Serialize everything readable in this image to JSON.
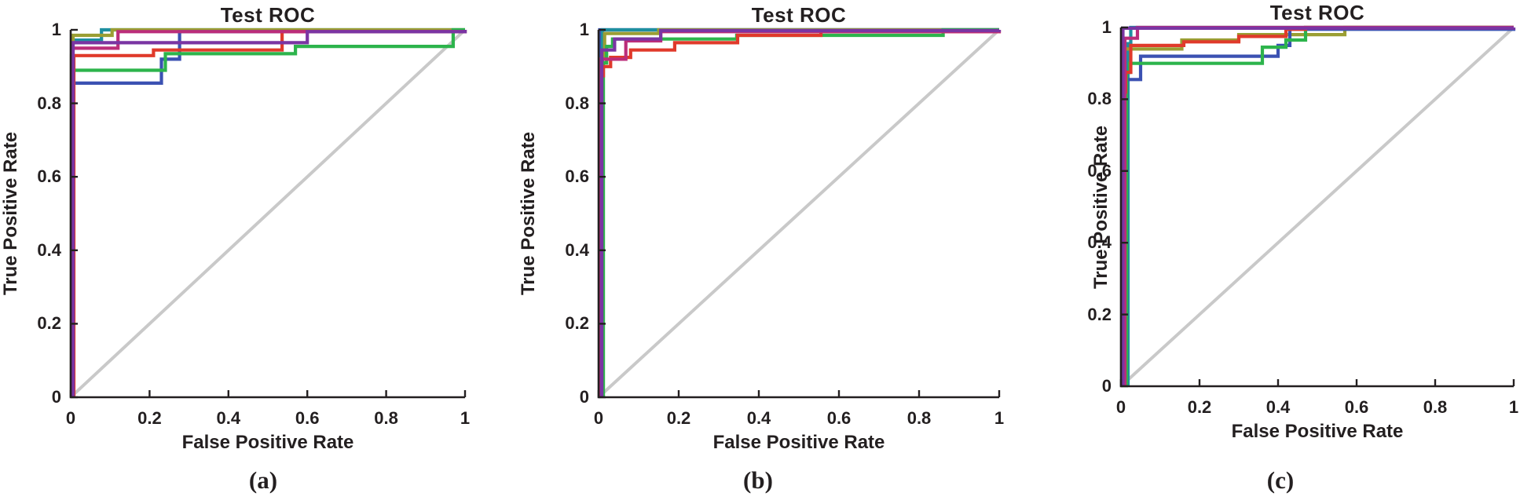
{
  "figure": {
    "background": "#ffffff",
    "colors": {
      "axis": "#231f20",
      "text": "#231f20",
      "diagonal": "#c9c9c9"
    },
    "captions": [
      "(a)",
      "(b)",
      "(c)"
    ]
  },
  "chart_data": [
    {
      "type": "line",
      "title": "Test ROC",
      "xlabel": "False Positive Rate",
      "ylabel": "True Positive Rate",
      "xlim": [
        0,
        1
      ],
      "ylim": [
        0,
        1
      ],
      "xticks": [
        0,
        0.2,
        0.4,
        0.6,
        0.8,
        1
      ],
      "yticks": [
        0,
        0.2,
        0.4,
        0.6,
        0.8,
        1
      ],
      "grid": false,
      "legend": "none",
      "reference_diagonal": {
        "from": [
          0,
          0
        ],
        "to": [
          1,
          1
        ],
        "color": "#c9c9c9"
      },
      "series": [
        {
          "name": "teal",
          "color": "#1e8fa0",
          "points": [
            [
              0.004,
              0
            ],
            [
              0.004,
              0.972
            ],
            [
              0.078,
              0.972
            ],
            [
              0.078,
              1
            ],
            [
              1,
              1
            ]
          ]
        },
        {
          "name": "olive",
          "color": "#9a9e33",
          "points": [
            [
              0.002,
              0
            ],
            [
              0.002,
              0.93
            ],
            [
              0.006,
              0.93
            ],
            [
              0.006,
              0.985
            ],
            [
              0.105,
              0.985
            ],
            [
              0.105,
              1
            ],
            [
              1,
              1
            ]
          ]
        },
        {
          "name": "blue",
          "color": "#3b51b2",
          "points": [
            [
              0.005,
              0
            ],
            [
              0.005,
              0.855
            ],
            [
              0.23,
              0.855
            ],
            [
              0.23,
              0.92
            ],
            [
              0.276,
              0.92
            ],
            [
              0.276,
              0.995
            ],
            [
              1,
              0.995
            ],
            [
              1,
              1
            ]
          ]
        },
        {
          "name": "green",
          "color": "#2db44c",
          "points": [
            [
              0.007,
              0
            ],
            [
              0.007,
              0.89
            ],
            [
              0.24,
              0.89
            ],
            [
              0.24,
              0.935
            ],
            [
              0.57,
              0.935
            ],
            [
              0.57,
              0.955
            ],
            [
              0.97,
              0.955
            ],
            [
              0.97,
              1
            ],
            [
              1,
              1
            ]
          ]
        },
        {
          "name": "red",
          "color": "#e03a2b",
          "points": [
            [
              0.008,
              0
            ],
            [
              0.008,
              0.93
            ],
            [
              0.21,
              0.93
            ],
            [
              0.21,
              0.945
            ],
            [
              0.536,
              0.945
            ],
            [
              0.536,
              0.995
            ],
            [
              1,
              0.995
            ],
            [
              1,
              1
            ]
          ]
        },
        {
          "name": "magenta",
          "color": "#bb2d7a",
          "points": [
            [
              0.003,
              0
            ],
            [
              0.003,
              0.95
            ],
            [
              0.12,
              0.95
            ],
            [
              0.12,
              0.995
            ],
            [
              1,
              0.995
            ],
            [
              1,
              1
            ]
          ]
        },
        {
          "name": "purple",
          "color": "#7a35a3",
          "points": [
            [
              0.006,
              0
            ],
            [
              0.006,
              0.965
            ],
            [
              0.6,
              0.965
            ],
            [
              0.6,
              0.995
            ],
            [
              1,
              0.995
            ],
            [
              1,
              1
            ]
          ]
        }
      ]
    },
    {
      "type": "line",
      "title": "Test ROC",
      "xlabel": "False Positive Rate",
      "ylabel": "True Positive Rate",
      "xlim": [
        0,
        1
      ],
      "ylim": [
        0,
        1
      ],
      "xticks": [
        0,
        0.2,
        0.4,
        0.6,
        0.8,
        1
      ],
      "yticks": [
        0,
        0.2,
        0.4,
        0.6,
        0.8,
        1
      ],
      "grid": false,
      "legend": "none",
      "reference_diagonal": {
        "from": [
          0,
          0
        ],
        "to": [
          1,
          1
        ],
        "color": "#c9c9c9"
      },
      "series": [
        {
          "name": "blue",
          "color": "#3b51b2",
          "points": [
            [
              0.003,
              0
            ],
            [
              0.003,
              1
            ],
            [
              1,
              1
            ]
          ]
        },
        {
          "name": "teal",
          "color": "#1e8fa0",
          "points": [
            [
              0.01,
              0
            ],
            [
              0.01,
              1
            ],
            [
              1,
              1
            ]
          ]
        },
        {
          "name": "olive",
          "color": "#9a9e33",
          "points": [
            [
              0.005,
              0
            ],
            [
              0.005,
              0.92
            ],
            [
              0.015,
              0.92
            ],
            [
              0.015,
              0.99
            ],
            [
              0.15,
              0.99
            ],
            [
              0.15,
              1
            ],
            [
              1,
              1
            ]
          ]
        },
        {
          "name": "green",
          "color": "#2db44c",
          "points": [
            [
              0.012,
              0
            ],
            [
              0.012,
              0.91
            ],
            [
              0.02,
              0.91
            ],
            [
              0.02,
              0.955
            ],
            [
              0.035,
              0.955
            ],
            [
              0.035,
              0.975
            ],
            [
              0.345,
              0.975
            ],
            [
              0.345,
              0.985
            ],
            [
              0.86,
              0.985
            ],
            [
              0.86,
              1
            ],
            [
              1,
              1
            ]
          ]
        },
        {
          "name": "red",
          "color": "#e03a2b",
          "points": [
            [
              0.005,
              0
            ],
            [
              0.005,
              0.875
            ],
            [
              0.012,
              0.875
            ],
            [
              0.012,
              0.9
            ],
            [
              0.03,
              0.9
            ],
            [
              0.03,
              0.925
            ],
            [
              0.08,
              0.925
            ],
            [
              0.08,
              0.945
            ],
            [
              0.19,
              0.945
            ],
            [
              0.19,
              0.965
            ],
            [
              0.347,
              0.965
            ],
            [
              0.347,
              0.985
            ],
            [
              0.555,
              0.985
            ],
            [
              0.555,
              0.995
            ],
            [
              1,
              0.995
            ],
            [
              1,
              1
            ]
          ]
        },
        {
          "name": "magenta",
          "color": "#bb2d7a",
          "points": [
            [
              0.006,
              0
            ],
            [
              0.006,
              0.92
            ],
            [
              0.068,
              0.92
            ],
            [
              0.068,
              0.97
            ],
            [
              0.155,
              0.97
            ],
            [
              0.155,
              0.995
            ],
            [
              1,
              0.995
            ],
            [
              1,
              1
            ]
          ]
        },
        {
          "name": "purple",
          "color": "#7a35a3",
          "points": [
            [
              0.008,
              0
            ],
            [
              0.008,
              0.945
            ],
            [
              0.04,
              0.945
            ],
            [
              0.04,
              0.975
            ],
            [
              0.155,
              0.975
            ],
            [
              0.155,
              0.998
            ],
            [
              1,
              0.998
            ],
            [
              1,
              1
            ]
          ]
        }
      ]
    },
    {
      "type": "line",
      "title": "Test ROC",
      "xlabel": "False Positive Rate",
      "ylabel": "True Positive Rate",
      "xlim": [
        0,
        1
      ],
      "ylim": [
        0,
        1
      ],
      "xticks": [
        0,
        0.2,
        0.4,
        0.6,
        0.8,
        1
      ],
      "yticks": [
        0,
        0.2,
        0.4,
        0.6,
        0.8,
        1
      ],
      "grid": false,
      "legend": "none",
      "reference_diagonal": {
        "from": [
          0,
          0
        ],
        "to": [
          1,
          1
        ],
        "color": "#c9c9c9"
      },
      "series": [
        {
          "name": "teal",
          "color": "#1e8fa0",
          "points": [
            [
              0.018,
              0
            ],
            [
              0.018,
              0.955
            ],
            [
              0.025,
              0.955
            ],
            [
              0.025,
              1
            ],
            [
              1,
              1
            ]
          ]
        },
        {
          "name": "olive",
          "color": "#9a9e33",
          "points": [
            [
              0.008,
              0
            ],
            [
              0.008,
              0.94
            ],
            [
              0.155,
              0.94
            ],
            [
              0.155,
              0.965
            ],
            [
              0.3,
              0.965
            ],
            [
              0.3,
              0.98
            ],
            [
              0.57,
              0.98
            ],
            [
              0.57,
              1
            ],
            [
              1,
              1
            ]
          ]
        },
        {
          "name": "blue",
          "color": "#3b51b2",
          "points": [
            [
              0.01,
              0
            ],
            [
              0.01,
              0.855
            ],
            [
              0.05,
              0.855
            ],
            [
              0.05,
              0.92
            ],
            [
              0.4,
              0.92
            ],
            [
              0.4,
              0.95
            ],
            [
              0.43,
              0.95
            ],
            [
              0.43,
              0.995
            ],
            [
              1,
              0.995
            ],
            [
              1,
              1
            ]
          ]
        },
        {
          "name": "green",
          "color": "#2db44c",
          "points": [
            [
              0.014,
              0
            ],
            [
              0.014,
              0.875
            ],
            [
              0.022,
              0.875
            ],
            [
              0.022,
              0.9
            ],
            [
              0.36,
              0.9
            ],
            [
              0.36,
              0.945
            ],
            [
              0.42,
              0.945
            ],
            [
              0.42,
              0.965
            ],
            [
              0.47,
              0.965
            ],
            [
              0.47,
              1
            ],
            [
              1,
              1
            ]
          ]
        },
        {
          "name": "red",
          "color": "#e03a2b",
          "points": [
            [
              0.006,
              0
            ],
            [
              0.006,
              0.82
            ],
            [
              0.012,
              0.82
            ],
            [
              0.012,
              0.875
            ],
            [
              0.025,
              0.875
            ],
            [
              0.025,
              0.95
            ],
            [
              0.16,
              0.95
            ],
            [
              0.16,
              0.96
            ],
            [
              0.3,
              0.96
            ],
            [
              0.3,
              0.975
            ],
            [
              0.42,
              0.975
            ],
            [
              0.42,
              0.995
            ],
            [
              0.47,
              0.995
            ],
            [
              0.47,
              1
            ],
            [
              1,
              1
            ]
          ]
        },
        {
          "name": "magenta",
          "color": "#bb2d7a",
          "points": [
            [
              0.01,
              0
            ],
            [
              0.01,
              0.97
            ],
            [
              0.042,
              0.97
            ],
            [
              0.042,
              1
            ],
            [
              1,
              1
            ]
          ]
        },
        {
          "name": "purple",
          "color": "#7a35a3",
          "points": [
            [
              0.005,
              0
            ],
            [
              0.005,
              0.998
            ],
            [
              1,
              0.998
            ],
            [
              1,
              1
            ]
          ]
        }
      ]
    }
  ]
}
